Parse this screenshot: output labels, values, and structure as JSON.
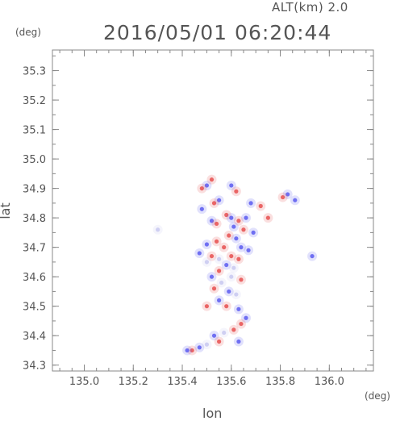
{
  "header": {
    "alt_label": "ALT(km) 2.0",
    "timestamp": "2016/05/01 06:20:44",
    "y_unit": "(deg)",
    "x_unit": "(deg)"
  },
  "chart_data": {
    "type": "heatmap",
    "title": "2016/05/01 06:20:44",
    "subtitle": "ALT(km) 2.0",
    "xlabel": "lon",
    "ylabel": "lat",
    "x_unit": "(deg)",
    "y_unit": "(deg)",
    "xlim": [
      134.87,
      136.18
    ],
    "ylim": [
      34.28,
      35.37
    ],
    "x_ticks": [
      135.0,
      135.2,
      135.4,
      135.6,
      135.8,
      136.0
    ],
    "x_tick_labels": [
      "135.0",
      "135.2",
      "135.4",
      "135.6",
      "135.8",
      "136.0"
    ],
    "y_ticks": [
      34.3,
      34.4,
      34.5,
      34.6,
      34.7,
      34.8,
      34.9,
      35.0,
      35.1,
      35.2,
      35.3
    ],
    "y_tick_labels": [
      "34.3",
      "34.4",
      "34.5",
      "34.6",
      "34.7",
      "34.8",
      "34.9",
      "35.0",
      "35.1",
      "35.2",
      "35.3"
    ],
    "grid": false,
    "colors": {
      "positive": "#e65050",
      "negative": "#5a5af0",
      "neutral": "#c8c8f0"
    },
    "cells": [
      {
        "lon": 135.52,
        "lat": 34.93,
        "sign": "pos"
      },
      {
        "lon": 135.5,
        "lat": 34.91,
        "sign": "neg"
      },
      {
        "lon": 135.48,
        "lat": 34.9,
        "sign": "pos"
      },
      {
        "lon": 135.6,
        "lat": 34.91,
        "sign": "neg"
      },
      {
        "lon": 135.62,
        "lat": 34.89,
        "sign": "pos"
      },
      {
        "lon": 135.83,
        "lat": 34.88,
        "sign": "neg"
      },
      {
        "lon": 135.81,
        "lat": 34.87,
        "sign": "pos"
      },
      {
        "lon": 135.86,
        "lat": 34.86,
        "sign": "neg"
      },
      {
        "lon": 135.55,
        "lat": 34.86,
        "sign": "neg"
      },
      {
        "lon": 135.53,
        "lat": 34.85,
        "sign": "pos"
      },
      {
        "lon": 135.68,
        "lat": 34.85,
        "sign": "neg"
      },
      {
        "lon": 135.72,
        "lat": 34.84,
        "sign": "pos"
      },
      {
        "lon": 135.48,
        "lat": 34.83,
        "sign": "neg"
      },
      {
        "lon": 135.58,
        "lat": 34.81,
        "sign": "pos"
      },
      {
        "lon": 135.6,
        "lat": 34.8,
        "sign": "neg"
      },
      {
        "lon": 135.63,
        "lat": 34.79,
        "sign": "pos"
      },
      {
        "lon": 135.66,
        "lat": 34.8,
        "sign": "neg"
      },
      {
        "lon": 135.75,
        "lat": 34.8,
        "sign": "pos"
      },
      {
        "lon": 135.52,
        "lat": 34.79,
        "sign": "neg"
      },
      {
        "lon": 135.54,
        "lat": 34.78,
        "sign": "pos"
      },
      {
        "lon": 135.61,
        "lat": 34.77,
        "sign": "neg"
      },
      {
        "lon": 135.65,
        "lat": 34.76,
        "sign": "pos"
      },
      {
        "lon": 135.69,
        "lat": 34.75,
        "sign": "neg"
      },
      {
        "lon": 135.3,
        "lat": 34.76,
        "sign": "neutral"
      },
      {
        "lon": 135.59,
        "lat": 34.74,
        "sign": "pos"
      },
      {
        "lon": 135.62,
        "lat": 34.73,
        "sign": "neg"
      },
      {
        "lon": 135.54,
        "lat": 34.72,
        "sign": "pos"
      },
      {
        "lon": 135.5,
        "lat": 34.71,
        "sign": "neg"
      },
      {
        "lon": 135.57,
        "lat": 34.7,
        "sign": "pos"
      },
      {
        "lon": 135.64,
        "lat": 34.7,
        "sign": "neg"
      },
      {
        "lon": 135.67,
        "lat": 34.69,
        "sign": "neg"
      },
      {
        "lon": 135.93,
        "lat": 34.67,
        "sign": "neg"
      },
      {
        "lon": 135.47,
        "lat": 34.68,
        "sign": "neg"
      },
      {
        "lon": 135.52,
        "lat": 34.67,
        "sign": "pos"
      },
      {
        "lon": 135.55,
        "lat": 34.66,
        "sign": "neutral"
      },
      {
        "lon": 135.6,
        "lat": 34.67,
        "sign": "pos"
      },
      {
        "lon": 135.63,
        "lat": 34.66,
        "sign": "pos"
      },
      {
        "lon": 135.5,
        "lat": 34.65,
        "sign": "neutral"
      },
      {
        "lon": 135.58,
        "lat": 34.64,
        "sign": "neg"
      },
      {
        "lon": 135.61,
        "lat": 34.63,
        "sign": "neutral"
      },
      {
        "lon": 135.55,
        "lat": 34.62,
        "sign": "pos"
      },
      {
        "lon": 135.52,
        "lat": 34.6,
        "sign": "neg"
      },
      {
        "lon": 135.6,
        "lat": 34.6,
        "sign": "neutral"
      },
      {
        "lon": 135.64,
        "lat": 34.59,
        "sign": "pos"
      },
      {
        "lon": 135.56,
        "lat": 34.58,
        "sign": "neutral"
      },
      {
        "lon": 135.53,
        "lat": 34.56,
        "sign": "pos"
      },
      {
        "lon": 135.59,
        "lat": 34.55,
        "sign": "neg"
      },
      {
        "lon": 135.62,
        "lat": 34.54,
        "sign": "neutral"
      },
      {
        "lon": 135.55,
        "lat": 34.52,
        "sign": "neg"
      },
      {
        "lon": 135.5,
        "lat": 34.5,
        "sign": "pos"
      },
      {
        "lon": 135.58,
        "lat": 34.5,
        "sign": "pos"
      },
      {
        "lon": 135.63,
        "lat": 34.49,
        "sign": "neg"
      },
      {
        "lon": 135.66,
        "lat": 34.46,
        "sign": "neg"
      },
      {
        "lon": 135.64,
        "lat": 34.44,
        "sign": "pos"
      },
      {
        "lon": 135.61,
        "lat": 34.42,
        "sign": "pos"
      },
      {
        "lon": 135.57,
        "lat": 34.41,
        "sign": "neutral"
      },
      {
        "lon": 135.53,
        "lat": 34.4,
        "sign": "neg"
      },
      {
        "lon": 135.63,
        "lat": 34.38,
        "sign": "neg"
      },
      {
        "lon": 135.55,
        "lat": 34.38,
        "sign": "pos"
      },
      {
        "lon": 135.5,
        "lat": 34.37,
        "sign": "neutral"
      },
      {
        "lon": 135.47,
        "lat": 34.36,
        "sign": "neg"
      },
      {
        "lon": 135.44,
        "lat": 34.35,
        "sign": "pos"
      },
      {
        "lon": 135.42,
        "lat": 34.35,
        "sign": "neg"
      }
    ]
  }
}
